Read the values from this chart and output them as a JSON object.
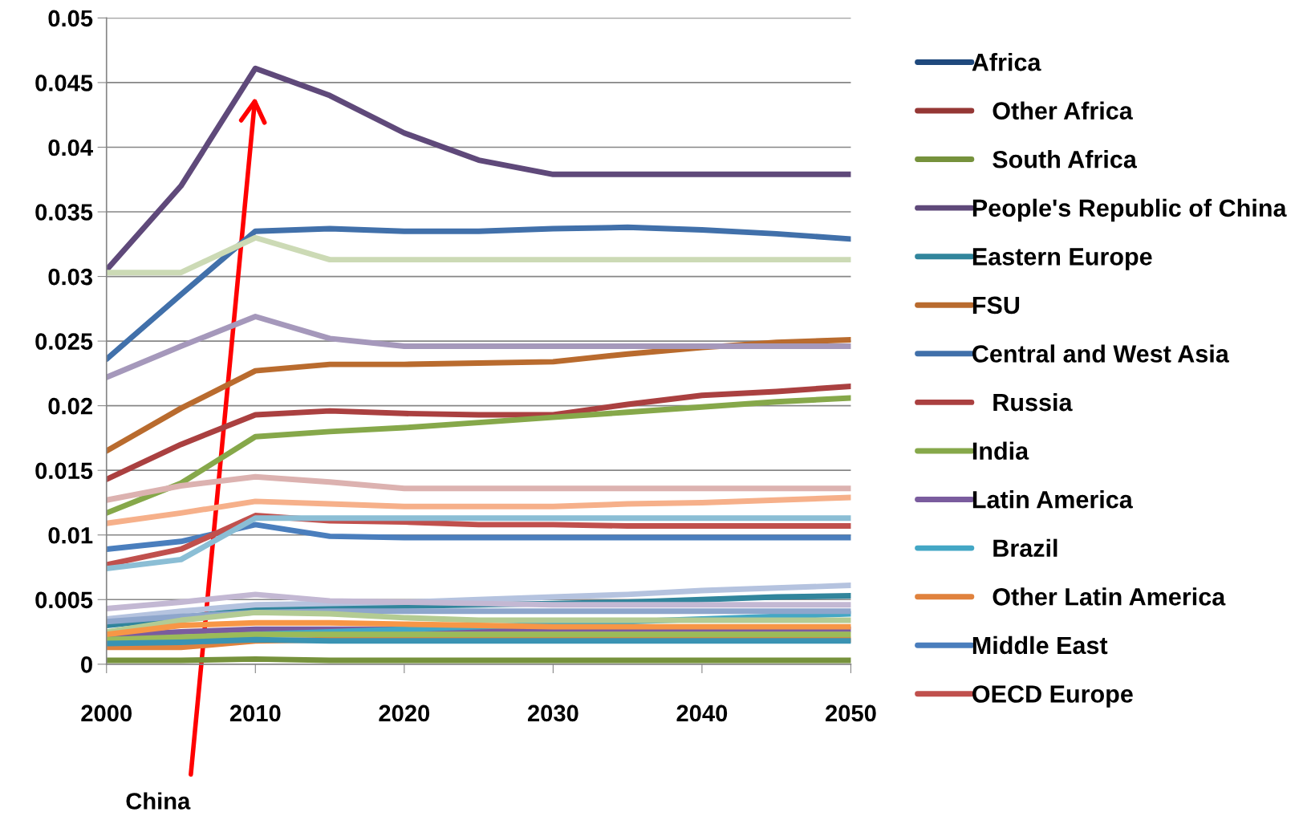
{
  "chart_data": {
    "type": "line",
    "x": [
      2000,
      2005,
      2010,
      2015,
      2020,
      2025,
      2030,
      2035,
      2040,
      2045,
      2050
    ],
    "xlim": [
      2000,
      2050
    ],
    "xticks": [
      2000,
      2010,
      2020,
      2030,
      2040,
      2050
    ],
    "ylim": [
      0,
      0.05
    ],
    "yticks": [
      0,
      0.005,
      0.01,
      0.015,
      0.02,
      0.025,
      0.03,
      0.035,
      0.04,
      0.045,
      0.05
    ],
    "grid": "y",
    "legend": "right",
    "marker": "none",
    "line_style": "solid",
    "annotations": [
      "China"
    ],
    "series": [
      {
        "name": "Africa",
        "color": "#1f497d",
        "values": [
          null,
          null,
          null,
          null,
          null,
          null,
          null,
          null,
          null,
          null,
          null
        ]
      },
      {
        "name": "   Other Africa",
        "color": "#953735",
        "values": [
          null,
          null,
          null,
          null,
          null,
          null,
          null,
          null,
          null,
          null,
          null
        ]
      },
      {
        "name": "   South Africa",
        "color": "#76923c",
        "values": [
          0.0003,
          0.0003,
          0.0004,
          0.0003,
          0.0003,
          0.0003,
          0.0003,
          0.0003,
          0.0003,
          0.0003,
          0.0003
        ]
      },
      {
        "name": "People's Republic of China",
        "color": "#5f497a",
        "values": [
          0.0305,
          0.037,
          0.0461,
          0.044,
          0.0411,
          0.039,
          0.0379,
          0.0379,
          0.0379,
          0.0379,
          0.0379
        ]
      },
      {
        "name": "Eastern Europe",
        "color": "#31859c",
        "values": [
          0.003,
          0.0036,
          0.0043,
          0.0044,
          0.0045,
          0.0046,
          0.0047,
          0.0048,
          0.005,
          0.0052,
          0.0053
        ]
      },
      {
        "name": "FSU",
        "color": "#b96b2e",
        "values": [
          0.0165,
          0.0198,
          0.0227,
          0.0232,
          0.0232,
          0.0233,
          0.0234,
          0.024,
          0.0245,
          0.0249,
          0.0251
        ]
      },
      {
        "name": "Central and West Asia",
        "color": "#4170aa",
        "values": [
          0.0236,
          0.0286,
          0.0335,
          0.0337,
          0.0335,
          0.0335,
          0.0337,
          0.0338,
          0.0336,
          0.0333,
          0.0329
        ]
      },
      {
        "name": "   Russia",
        "color": "#aa4040",
        "values": [
          0.0143,
          0.017,
          0.0193,
          0.0196,
          0.0194,
          0.0193,
          0.0193,
          0.0201,
          0.0208,
          0.0211,
          0.0215
        ]
      },
      {
        "name": "India",
        "color": "#86a84a",
        "values": [
          0.0117,
          0.014,
          0.0176,
          0.018,
          0.0183,
          0.0187,
          0.0191,
          0.0195,
          0.0199,
          0.0203,
          0.0206
        ]
      },
      {
        "name": "Latin America",
        "color": "#7a5c9e",
        "values": [
          0.0022,
          0.0025,
          0.0027,
          0.0027,
          0.0027,
          0.0027,
          0.0027,
          0.0027,
          0.0027,
          0.0027,
          0.0027
        ]
      },
      {
        "name": "   Brazil",
        "color": "#43a7c5",
        "values": [
          0.0019,
          0.002,
          0.0023,
          0.0025,
          0.0027,
          0.0029,
          0.0031,
          0.0033,
          0.0035,
          0.0037,
          0.0039
        ]
      },
      {
        "name": "   Other Latin America",
        "color": "#e0823d",
        "values": [
          0.0013,
          0.0013,
          0.0018,
          0.0019,
          0.0019,
          0.0019,
          0.0019,
          0.0019,
          0.0019,
          0.0019,
          0.0019
        ]
      },
      {
        "name": "Middle East",
        "color": "#4a7ebd",
        "values": [
          0.0089,
          0.0095,
          0.0108,
          0.0099,
          0.0098,
          0.0098,
          0.0098,
          0.0098,
          0.0098,
          0.0098,
          0.0098
        ]
      },
      {
        "name": "OECD Europe",
        "color": "#c0504d",
        "values": [
          0.0077,
          0.0089,
          0.0115,
          0.0111,
          0.011,
          0.0108,
          0.0108,
          0.0107,
          0.0107,
          0.0107,
          0.0107
        ]
      },
      {
        "color": "#ccdab5",
        "values": [
          0.0303,
          0.0303,
          0.033,
          0.0313,
          0.0313,
          0.0313,
          0.0313,
          0.0313,
          0.0313,
          0.0313,
          0.0313
        ]
      },
      {
        "color": "#a598bb",
        "values": [
          0.0222,
          0.0246,
          0.0269,
          0.0252,
          0.0246,
          0.0246,
          0.0246,
          0.0246,
          0.0246,
          0.0246,
          0.0246
        ]
      },
      {
        "color": "#dcb2b0",
        "values": [
          0.0127,
          0.0138,
          0.0145,
          0.0141,
          0.0136,
          0.0136,
          0.0136,
          0.0136,
          0.0136,
          0.0136,
          0.0136
        ]
      },
      {
        "color": "#f6b08a",
        "values": [
          0.0109,
          0.0117,
          0.0126,
          0.0124,
          0.0122,
          0.0122,
          0.0122,
          0.0124,
          0.0125,
          0.0127,
          0.0129
        ]
      },
      {
        "color": "#8bbed5",
        "values": [
          0.0074,
          0.0081,
          0.0113,
          0.0113,
          0.0113,
          0.0113,
          0.0113,
          0.0113,
          0.0113,
          0.0113,
          0.0113
        ]
      },
      {
        "color": "#b5c3df",
        "values": [
          0.0035,
          0.0041,
          0.0046,
          0.0047,
          0.0048,
          0.005,
          0.0052,
          0.0054,
          0.0057,
          0.0059,
          0.0061
        ]
      },
      {
        "color": "#c3b8d3",
        "values": [
          0.0043,
          0.0048,
          0.0054,
          0.0049,
          0.0048,
          0.0047,
          0.0046,
          0.0046,
          0.0046,
          0.0046,
          0.0046
        ]
      },
      {
        "color": "#8ea6cc",
        "values": [
          0.0033,
          0.0037,
          0.004,
          0.0041,
          0.0041,
          0.0041,
          0.0041,
          0.0041,
          0.0041,
          0.0041,
          0.0041
        ]
      },
      {
        "color": "#b3cb93",
        "values": [
          0.0025,
          0.0034,
          0.004,
          0.0039,
          0.0036,
          0.0034,
          0.0034,
          0.0034,
          0.0034,
          0.0034,
          0.0034
        ]
      },
      {
        "color": "#f79646",
        "values": [
          0.0023,
          0.003,
          0.0032,
          0.0032,
          0.0031,
          0.003,
          0.0029,
          0.0029,
          0.0029,
          0.0029,
          0.0029
        ]
      },
      {
        "color": "#9bbb59",
        "values": [
          0.0019,
          0.0021,
          0.0023,
          0.0023,
          0.0023,
          0.0023,
          0.0023,
          0.0023,
          0.0023,
          0.0023,
          0.0023
        ]
      },
      {
        "color": "#3a93b3",
        "values": [
          0.0016,
          0.0017,
          0.0019,
          0.0018,
          0.0018,
          0.0018,
          0.0018,
          0.0018,
          0.0018,
          0.0018,
          0.0018
        ]
      }
    ]
  }
}
